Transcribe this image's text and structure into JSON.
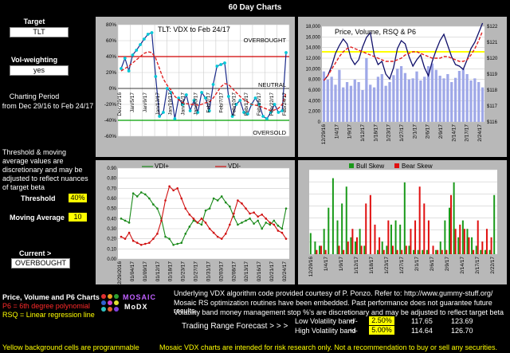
{
  "header": {
    "title": "60 Day Charts"
  },
  "left": {
    "target_label": "Target",
    "target_value": "TLT",
    "volw_label": "Vol-weighting",
    "volw_value": "yes",
    "period_label": "Charting Period",
    "period_value": "from Dec 29/16 to Feb 24/17",
    "note": "Threshold & moving average values are discretionary and may be adjusted to reflect nuances of target beta",
    "threshold_label": "Threshold",
    "threshold_value": "40%",
    "ma_label": "Moving Average",
    "ma_value": "10",
    "current_label": "Current >",
    "current_value": "OVERBOUGHT",
    "legend_title": "Price, Volume and P6 Charts",
    "legend_p6": "P6 = 6th degree polynomial",
    "legend_rsq": "RSQ = Linear regression line",
    "yellow_note": "Yellow background cells are programmable"
  },
  "logo": {
    "word1": "MOSAIC",
    "word2": "MoDX"
  },
  "footer": {
    "line1": "Underlying VDX algorithm code provided courtesy of P. Ponzo.   Refer to:   http://www.gummy-stuff.org/",
    "line2": "Mosaic RS optimization routines have been embedded.     Past performance does not guarantee future results.",
    "line3": "Volatility band money management stop %'s are discretionary and may be adjusted to reflect target beta",
    "trf_label": "Trading Range Forecast > > >",
    "low_label": "Low Volatility band",
    "low_pm": "+/-",
    "low_pct": "2.50%",
    "low_a": "117.65",
    "low_b": "123.69",
    "high_label": "High Volatility band",
    "high_pm": "+/-",
    "high_pct": "5.00%",
    "high_a": "114.64",
    "high_b": "126.70",
    "disclaimer": "Mosaic VDX charts are intended for risk research only.  Not a recommendation to buy or sell any securities."
  },
  "colors": {
    "yellow": "#ffff00",
    "red": "#ff2a2a",
    "vdx": "#00b0c0",
    "green": "#1a8a1a"
  },
  "chart_data": [
    {
      "type": "line",
      "title": "TLT:   VDX to Feb 24/17",
      "annotations": [
        "OVERBOUGHT",
        "NEUTRAL",
        "OVERSOLD"
      ],
      "yticks": [
        "80%",
        "60%",
        "40%",
        "20%",
        "0%",
        "-20%",
        "-40%",
        "-60%"
      ],
      "ylim": [
        -60,
        80
      ],
      "xticks": [
        "Dec/29/16",
        "Jan/5/17",
        "Jan/9/17",
        "Jan/13/17",
        "Jan/19/17",
        "Jan/24/17",
        "Jan/30/17",
        "Feb/2/17",
        "Feb/7/17",
        "Feb/10/17",
        "Feb/13/17",
        "Feb/16/17",
        "Feb/22/17",
        "Feb/24/17"
      ],
      "series": [
        {
          "name": "VDX",
          "values": [
            25,
            38,
            22,
            42,
            48,
            55,
            62,
            68,
            70,
            15,
            -35,
            -30,
            0,
            -5,
            -38,
            -12,
            -20,
            -8,
            -28,
            -15,
            -30,
            -5,
            -12,
            -28,
            5,
            28,
            30,
            32,
            -10,
            -35,
            -20,
            -15,
            -30,
            -32,
            -20,
            -12,
            -20,
            -35,
            -38,
            -30,
            -20,
            -30,
            -28,
            45
          ]
        },
        {
          "name": "MA",
          "values": [
            22,
            25,
            28,
            32,
            36,
            40,
            44,
            46,
            45,
            38,
            25,
            12,
            4,
            -2,
            -10,
            -14,
            -18,
            -19,
            -20,
            -20,
            -21,
            -20,
            -18,
            -17,
            -12,
            -5,
            2,
            6,
            5,
            0,
            -5,
            -10,
            -14,
            -17,
            -20,
            -21,
            -22,
            -24,
            -26,
            -28,
            -27,
            -25,
            -20,
            -5
          ]
        }
      ],
      "thresholds": [
        40,
        -40
      ]
    },
    {
      "type": "bar+line",
      "title": "Price,  Volume, RSQ & P6",
      "yticks_left": [
        "18,000",
        "16,000",
        "14,000",
        "12,000",
        "10,000",
        "8,000",
        "6,000",
        "4,000",
        "2,000",
        "0"
      ],
      "yticks_right": [
        "$122",
        "$121",
        "$120",
        "$119",
        "$118",
        "$117",
        "$116"
      ],
      "xticks": [
        "12/29/16",
        "1/4/17",
        "1/9/17",
        "1/12/17",
        "1/18/17",
        "1/23/17",
        "1/27/17",
        "2/1/17",
        "2/6/17",
        "2/9/17",
        "2/14/17",
        "2/17/17",
        "2/24/17"
      ],
      "volume": [
        9500,
        8000,
        8500,
        7000,
        9800,
        6500,
        7500,
        6800,
        8000,
        7500,
        6000,
        12000,
        7000,
        6500,
        8500,
        9000,
        6800,
        7500,
        8800,
        10000,
        10500,
        9200,
        8000,
        8200,
        9500,
        7800,
        8500,
        10500,
        11000,
        9800,
        8700,
        8200,
        9000,
        7500,
        8300,
        9600,
        10000,
        9000,
        7800,
        8200,
        7500,
        6500
      ],
      "price": [
        118.6,
        118.9,
        119.5,
        120.3,
        120.8,
        121.2,
        120.9,
        120.0,
        119.6,
        119.9,
        120.7,
        121.3,
        121.6,
        120.2,
        119.6,
        119.8,
        119.0,
        118.7,
        119.4,
        120.6,
        121.1,
        120.9,
        120.1,
        119.5,
        119.9,
        120.2,
        119.4,
        118.9,
        119.8,
        120.5,
        121.1,
        121.5,
        120.8,
        120.1,
        119.6,
        119.5,
        119.3,
        119.9,
        120.6,
        121.0,
        121.6,
        122.2
      ],
      "p6": [
        118.6,
        118.9,
        119.3,
        119.7,
        120.1,
        120.4,
        120.6,
        120.7,
        120.6,
        120.5,
        120.4,
        120.3,
        120.2,
        120.1,
        120.0,
        119.9,
        119.8,
        119.8,
        119.8,
        119.9,
        120.0,
        120.2,
        120.3,
        120.4,
        120.4,
        120.3,
        120.2,
        120.1,
        120.0,
        120.0,
        120.0,
        120.1,
        120.1,
        120.0,
        119.9,
        119.8,
        119.8,
        119.9,
        120.2,
        120.6,
        121.1,
        121.7
      ],
      "rsq": [
        120.4,
        120.4
      ]
    },
    {
      "type": "line",
      "legend": [
        "VDI+",
        "VDI-"
      ],
      "yticks": [
        "0.90",
        "0.80",
        "0.70",
        "0.60",
        "0.50",
        "0.40",
        "0.30",
        "0.20",
        "0.10",
        "0.00"
      ],
      "ylim": [
        0,
        0.9
      ],
      "xticks": [
        "12/29/2016",
        "01/04/17",
        "01/09/17",
        "01/12/17",
        "01/18/17",
        "01/23/17",
        "01/27/17",
        "01/31/17",
        "02/03/17",
        "02/08/17",
        "02/13/17",
        "02/16/17",
        "02/21/17",
        "02/24/17"
      ],
      "series": [
        {
          "name": "VDI+",
          "values": [
            0.4,
            0.38,
            0.36,
            0.65,
            0.62,
            0.66,
            0.64,
            0.6,
            0.54,
            0.5,
            0.4,
            0.22,
            0.2,
            0.14,
            0.15,
            0.16,
            0.25,
            0.32,
            0.38,
            0.36,
            0.34,
            0.48,
            0.5,
            0.6,
            0.58,
            0.62,
            0.56,
            0.52,
            0.42,
            0.34,
            0.36,
            0.38,
            0.4,
            0.35,
            0.38,
            0.3,
            0.36,
            0.34,
            0.38,
            0.33,
            0.3,
            0.5
          ]
        },
        {
          "name": "VDI-",
          "values": [
            0.22,
            0.2,
            0.26,
            0.18,
            0.16,
            0.14,
            0.15,
            0.16,
            0.2,
            0.25,
            0.38,
            0.58,
            0.72,
            0.68,
            0.7,
            0.6,
            0.5,
            0.44,
            0.4,
            0.36,
            0.4,
            0.36,
            0.3,
            0.26,
            0.22,
            0.2,
            0.25,
            0.34,
            0.45,
            0.58,
            0.55,
            0.5,
            0.45,
            0.46,
            0.42,
            0.44,
            0.4,
            0.36,
            0.34,
            0.28,
            0.26,
            0.2
          ]
        }
      ]
    },
    {
      "type": "bar",
      "legend": [
        "Bull Skew",
        "Bear Skew"
      ],
      "xticks": [
        "12/29/16",
        "1/4/17",
        "1/9/17",
        "1/12/17",
        "1/18/17",
        "1/23/17",
        "1/27/17",
        "2/1/17",
        "2/6/17",
        "2/9/17",
        "2/14/17",
        "2/17/17",
        "2/22/17"
      ],
      "series": [
        {
          "name": "Bull Skew",
          "values": [
            0.25,
            0.15,
            0.1,
            0.3,
            0.55,
            0.9,
            0.4,
            0.6,
            0.8,
            0.2,
            0.15,
            0.3,
            0.1,
            0,
            0,
            0.05,
            0.15,
            0.1,
            0.35,
            0.4,
            0.35,
            0.85,
            0.1,
            0.05,
            0.05,
            0.05,
            0.05,
            0,
            0.05,
            0.15,
            0.4,
            0.55,
            0.85,
            0.2,
            0.4,
            0.3,
            0.2,
            0.1,
            0.05,
            0.05,
            0.05,
            0.7
          ]
        },
        {
          "name": "Bear Skew",
          "values": [
            0,
            0.05,
            0.1,
            0.05,
            0,
            0,
            0.1,
            0.05,
            0.15,
            0.3,
            0.2,
            0.1,
            0.6,
            0.7,
            0.35,
            0.2,
            0.05,
            0.4,
            0.1,
            0.05,
            0.05,
            0.1,
            0.3,
            0.4,
            0.8,
            0.6,
            0.4,
            0.1,
            0.05,
            0.05,
            0.05,
            0.7,
            0.3,
            0.35,
            0.3,
            0.2,
            0.05,
            0.4,
            0.15,
            0.3,
            0.2,
            0
          ]
        }
      ]
    }
  ]
}
